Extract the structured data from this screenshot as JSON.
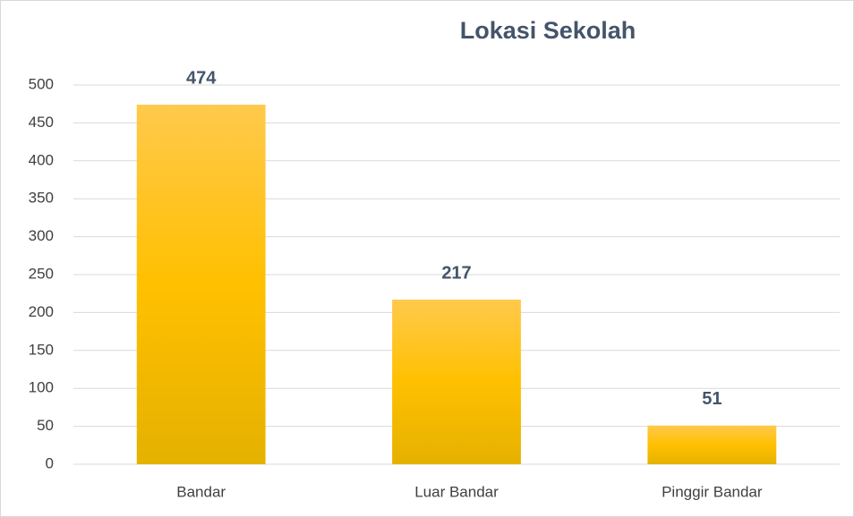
{
  "chart_data": {
    "type": "bar",
    "title": "Lokasi Sekolah",
    "categories": [
      "Bandar",
      "Luar Bandar",
      "Pinggir Bandar"
    ],
    "values": [
      474,
      217,
      51
    ],
    "color": "#ffc000",
    "ylim": [
      0,
      500
    ],
    "yticks": [
      0,
      50,
      100,
      150,
      200,
      250,
      300,
      350,
      400,
      450,
      500
    ],
    "grid": true
  }
}
